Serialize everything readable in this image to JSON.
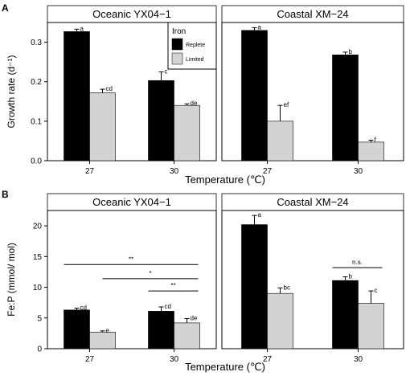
{
  "chart_data": [
    {
      "type": "bar",
      "panel_letter": "A",
      "xlabel": "Temperature (℃)",
      "ylabel": "Growth rate (d⁻¹)",
      "ylim": [
        0,
        0.35
      ],
      "yticks": [
        "0.0",
        "0.1",
        "0.2",
        "0.3"
      ],
      "ytick_values": [
        0,
        0.1,
        0.2,
        0.3
      ],
      "categories": [
        "27",
        "30"
      ],
      "legend": {
        "title": "Iron",
        "placement": "top-right of left facet",
        "entries": [
          {
            "label": "Replete",
            "color": "#000000"
          },
          {
            "label": "Limited",
            "color": "#d3d3d3"
          }
        ]
      },
      "facets": [
        {
          "title": "Oceanic YX04−1",
          "series": [
            {
              "name": "Replete",
              "values": [
                0.327,
                0.203
              ],
              "errors": [
                0.006,
                0.022
              ],
              "letters": [
                "a",
                "c"
              ]
            },
            {
              "name": "Limited",
              "values": [
                0.172,
                0.14
              ],
              "errors": [
                0.009,
                0.004
              ],
              "letters": [
                "cd",
                "de"
              ]
            }
          ],
          "comparisons": []
        },
        {
          "title": "Coastal XM−24",
          "series": [
            {
              "name": "Replete",
              "values": [
                0.33,
                0.268
              ],
              "errors": [
                0.007,
                0.007
              ],
              "letters": [
                "a",
                "b"
              ]
            },
            {
              "name": "Limited",
              "values": [
                0.1,
                0.047
              ],
              "errors": [
                0.04,
                0.005
              ],
              "letters": [
                "ef",
                "f"
              ]
            }
          ],
          "comparisons": []
        }
      ]
    },
    {
      "type": "bar",
      "panel_letter": "B",
      "xlabel": "Temperature (℃)",
      "ylabel": "Fe:P (mmol/ mol)",
      "ylim": [
        0,
        22.5
      ],
      "yticks": [
        "0",
        "5",
        "10",
        "15",
        "20"
      ],
      "ytick_values": [
        0,
        5,
        10,
        15,
        20
      ],
      "categories": [
        "27",
        "30"
      ],
      "facets": [
        {
          "title": "Oceanic YX04−1",
          "series": [
            {
              "name": "Replete",
              "values": [
                6.3,
                6.1
              ],
              "errors": [
                0.3,
                0.7
              ],
              "letters": [
                "cd",
                "cd"
              ]
            },
            {
              "name": "Limited",
              "values": [
                2.7,
                4.2
              ],
              "errors": [
                0.2,
                0.7
              ],
              "letters": [
                "e",
                "de"
              ]
            }
          ],
          "comparisons": [
            {
              "label": "**",
              "y": 13.7,
              "from": [
                0,
                0
              ],
              "to": [
                1,
                1
              ]
            },
            {
              "label": "*",
              "y": 11.4,
              "from": [
                0,
                1
              ],
              "to": [
                1,
                1
              ]
            },
            {
              "label": "**",
              "y": 9.4,
              "from": [
                1,
                0
              ],
              "to": [
                1,
                1
              ]
            }
          ]
        },
        {
          "title": "Coastal XM−24",
          "series": [
            {
              "name": "Replete",
              "values": [
                20.2,
                11.1
              ],
              "errors": [
                1.5,
                0.6
              ],
              "letters": [
                "a",
                "b"
              ]
            },
            {
              "name": "Limited",
              "values": [
                9.0,
                7.4
              ],
              "errors": [
                0.9,
                2.0
              ],
              "letters": [
                "bc",
                "c"
              ]
            }
          ],
          "comparisons": [
            {
              "label": "n.s.",
              "y": 13.2,
              "from": [
                1,
                0
              ],
              "to": [
                1,
                1
              ]
            }
          ]
        }
      ]
    }
  ]
}
